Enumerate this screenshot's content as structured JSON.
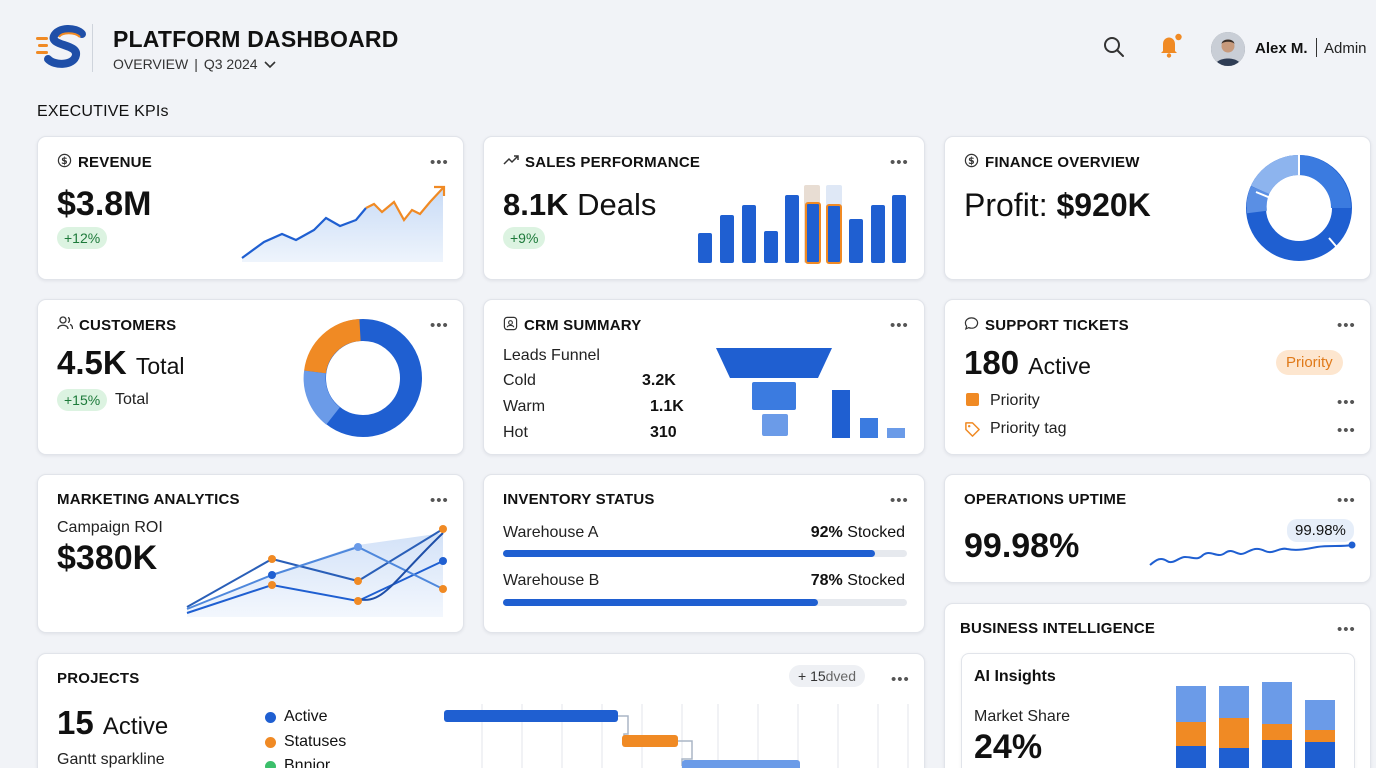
{
  "header": {
    "title": "PLATFORM DASHBOARD",
    "subtitle_view": "OVERVIEW",
    "subtitle_period": "Q3 2024",
    "user_name": "Alex M.",
    "user_role": "Admin",
    "icons": [
      "search-icon",
      "bell-icon",
      "avatar"
    ]
  },
  "section_title": "EXECUTIVE KPIs",
  "colors": {
    "blue": "#1f5fd1",
    "light_blue": "#6b9be8",
    "orange": "#f08a24",
    "green_pill_bg": "#dcf3e1",
    "orange_pill_bg": "#fde6cf"
  },
  "revenue": {
    "title": "REVENUE",
    "value": "$3.8M",
    "change": "+12%"
  },
  "sales": {
    "title": "SALES PERFORMANCE",
    "value": "8.1K",
    "unit": "Deals",
    "change": "+9%"
  },
  "finance": {
    "title": "FINANCE OVERVIEW",
    "label": "Profit:",
    "value": "$920K"
  },
  "customers": {
    "title": "CUSTOMERS",
    "value": "4.5K",
    "unit": "Total",
    "change": "+15%",
    "change_label": "Total"
  },
  "crm": {
    "title": "CRM SUMMARY",
    "funnel_label": "Leads Funnel",
    "rows": [
      {
        "label": "Cold",
        "value": "3.2K"
      },
      {
        "label": "Warm",
        "value": "1.1K"
      },
      {
        "label": "Hot",
        "value": "310"
      }
    ]
  },
  "support": {
    "title": "SUPPORT TICKETS",
    "value": "180",
    "unit": "Active",
    "badge": "Priority",
    "items": [
      {
        "label": "Priority",
        "icon": "square-icon"
      },
      {
        "label": "Priority tag",
        "icon": "tag-icon"
      }
    ]
  },
  "marketing": {
    "title": "MARKETING ANALYTICS",
    "label": "Campaign ROI",
    "value": "$380K"
  },
  "inventory": {
    "title": "INVENTORY STATUS",
    "rows": [
      {
        "label": "Warehouse A",
        "percent": "92%",
        "status": "Stocked",
        "fill": 0.92
      },
      {
        "label": "Warehouse B",
        "percent": "78%",
        "status": "Stocked",
        "fill": 0.78
      }
    ]
  },
  "uptime": {
    "title": "OPERATIONS UPTIME",
    "value": "99.98%",
    "tooltip": "99.98%"
  },
  "bi": {
    "title": "BUSINESS INTELLIGENCE",
    "inner_title": "AI Insights",
    "metric_label": "Market Share",
    "metric_value": "24%"
  },
  "projects": {
    "title": "PROJECTS",
    "value": "15",
    "unit": "Active",
    "sub_label": "Gantt sparkline",
    "badge": "+ 15",
    "badge_rest": "dved",
    "legend": [
      {
        "label": "Active",
        "color": "#1f5fd1"
      },
      {
        "label": "Statuses",
        "color": "#f08a24"
      },
      {
        "label": "Bnnior",
        "color": "#3cbf6b"
      }
    ]
  }
}
